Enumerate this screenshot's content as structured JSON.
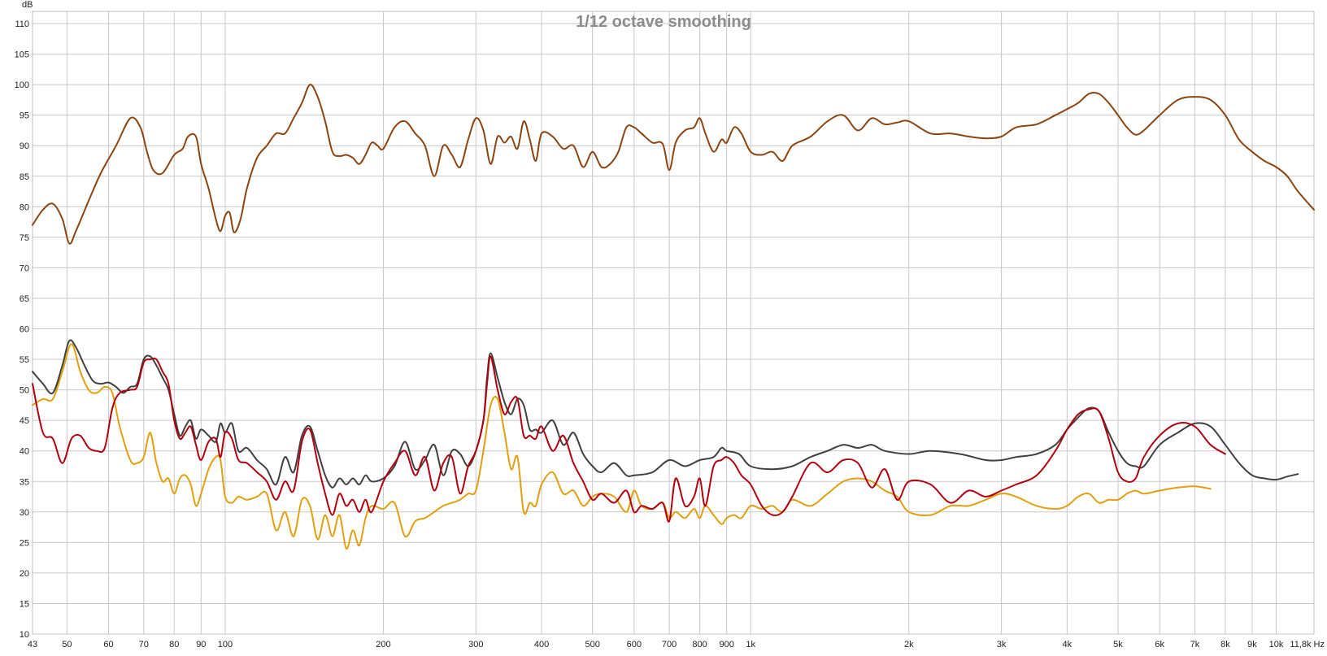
{
  "chart_data": {
    "type": "line",
    "title": "1/12 octave smoothing",
    "ylabel": "dB",
    "xlabel": "Hz",
    "xscale": "log",
    "xlim": [
      43,
      11800
    ],
    "ylim": [
      10,
      112
    ],
    "grid": true,
    "colors": {
      "top": "#8b4513",
      "gray": "#404040",
      "red": "#b00010",
      "orange": "#e0a010",
      "grid": "#c8c8c8",
      "title": "#8c8c8c"
    },
    "y_ticks": [
      10,
      15,
      20,
      25,
      30,
      35,
      40,
      45,
      50,
      55,
      60,
      65,
      70,
      75,
      80,
      85,
      90,
      95,
      100,
      105,
      110
    ],
    "x_ticks": [
      {
        "v": 43,
        "label": "43"
      },
      {
        "v": 50,
        "label": "50"
      },
      {
        "v": 60,
        "label": "60"
      },
      {
        "v": 70,
        "label": "70"
      },
      {
        "v": 80,
        "label": "80"
      },
      {
        "v": 90,
        "label": "90"
      },
      {
        "v": 100,
        "label": "100"
      },
      {
        "v": 200,
        "label": "200"
      },
      {
        "v": 300,
        "label": "300"
      },
      {
        "v": 400,
        "label": "400"
      },
      {
        "v": 500,
        "label": "500"
      },
      {
        "v": 600,
        "label": "600"
      },
      {
        "v": 700,
        "label": "700"
      },
      {
        "v": 800,
        "label": "800"
      },
      {
        "v": 900,
        "label": "900"
      },
      {
        "v": 1000,
        "label": "1k"
      },
      {
        "v": 2000,
        "label": "2k"
      },
      {
        "v": 3000,
        "label": "3k"
      },
      {
        "v": 4000,
        "label": "4k"
      },
      {
        "v": 5000,
        "label": "5k"
      },
      {
        "v": 6000,
        "label": "6k"
      },
      {
        "v": 7000,
        "label": "7k"
      },
      {
        "v": 8000,
        "label": "8k"
      },
      {
        "v": 9000,
        "label": "9k"
      },
      {
        "v": 10000,
        "label": "10k"
      },
      {
        "v": 11800,
        "label": "11,8k Hz"
      }
    ],
    "series": [
      {
        "color_key": "top",
        "x": [
          43,
          45,
          47,
          49,
          50.5,
          52,
          55,
          58,
          62,
          66,
          69,
          71,
          73,
          76,
          80,
          83,
          85,
          88,
          90,
          93,
          96,
          98,
          100,
          102,
          104,
          107,
          110,
          115,
          120,
          125,
          130,
          135,
          140,
          145,
          150,
          155,
          160,
          165,
          170,
          175,
          180,
          185,
          190,
          195,
          200,
          210,
          220,
          230,
          240,
          250,
          260,
          270,
          280,
          290,
          300,
          310,
          320,
          330,
          340,
          350,
          360,
          370,
          380,
          390,
          400,
          420,
          440,
          460,
          480,
          500,
          520,
          540,
          560,
          580,
          600,
          620,
          650,
          680,
          700,
          720,
          750,
          780,
          800,
          820,
          850,
          880,
          900,
          930,
          960,
          1000,
          1050,
          1100,
          1150,
          1200,
          1300,
          1400,
          1500,
          1600,
          1700,
          1800,
          1900,
          2000,
          2200,
          2400,
          2600,
          2800,
          3000,
          3200,
          3500,
          3800,
          4000,
          4200,
          4400,
          4600,
          4800,
          5000,
          5200,
          5400,
          5600,
          6000,
          6500,
          7000,
          7500,
          8000,
          8500,
          9000,
          9500,
          10000,
          10500,
          11000,
          11800
        ],
        "y": [
          77,
          79.5,
          80.5,
          78,
          74,
          76,
          81,
          85.5,
          90,
          94.5,
          93,
          89,
          86,
          85.5,
          88.5,
          89.5,
          91.5,
          91.5,
          87,
          83,
          78,
          76,
          78.5,
          79,
          75.8,
          78,
          83,
          88,
          90,
          92,
          92,
          94.5,
          97,
          100,
          98,
          94,
          89,
          88.3,
          88.5,
          88,
          87,
          88.5,
          90.5,
          90,
          89.5,
          93,
          94,
          92,
          90,
          85,
          90,
          88.5,
          86.5,
          91,
          94.5,
          92.5,
          87,
          91.5,
          90.5,
          91.5,
          89.5,
          94,
          91,
          87.5,
          92,
          91.5,
          89.5,
          90,
          86.5,
          89,
          86.5,
          87,
          89,
          93,
          93,
          92,
          90.5,
          90.3,
          86,
          90.5,
          92.5,
          93,
          94.5,
          92,
          89,
          91,
          90.5,
          93,
          92,
          89,
          88.5,
          89,
          87.5,
          90,
          91.5,
          94,
          95,
          92.5,
          94.5,
          93.5,
          93.8,
          94,
          92,
          92,
          91.5,
          91.2,
          91.5,
          93,
          93.5,
          95,
          96,
          97,
          98.5,
          98.5,
          97,
          95,
          93,
          91.8,
          92.5,
          95,
          97.5,
          98,
          97.5,
          95,
          91,
          89,
          87.5,
          86.5,
          85,
          82.5,
          79.5
        ]
      },
      {
        "color_key": "gray",
        "x": [
          43,
          45,
          47,
          49,
          50.5,
          52,
          54,
          56,
          58,
          60,
          62,
          64,
          66,
          68,
          70,
          72,
          74,
          76,
          78,
          80,
          82,
          84,
          86,
          88,
          90,
          93,
          96,
          98,
          100,
          103,
          106,
          110,
          115,
          120,
          125,
          130,
          135,
          140,
          145,
          150,
          155,
          160,
          165,
          170,
          175,
          180,
          185,
          190,
          200,
          210,
          220,
          230,
          240,
          250,
          260,
          270,
          280,
          290,
          300,
          310,
          315,
          320,
          330,
          340,
          350,
          360,
          370,
          380,
          390,
          400,
          420,
          440,
          460,
          480,
          500,
          520,
          550,
          580,
          600,
          650,
          700,
          750,
          800,
          850,
          880,
          900,
          950,
          1000,
          1100,
          1200,
          1300,
          1400,
          1500,
          1600,
          1700,
          1800,
          2000,
          2200,
          2500,
          2800,
          3000,
          3200,
          3500,
          3800,
          4000,
          4200,
          4400,
          4600,
          4800,
          5000,
          5200,
          5400,
          5600,
          6000,
          6500,
          7000,
          7500,
          8000,
          8500,
          9000,
          9500,
          10000,
          10500,
          11000
        ],
        "y": [
          53,
          51,
          49.5,
          54,
          58,
          57,
          54,
          51.5,
          51,
          51.2,
          50.5,
          49.5,
          50.5,
          51,
          55,
          55.5,
          54,
          52,
          50,
          46,
          42.5,
          44,
          45,
          42,
          43.5,
          42.5,
          41.5,
          44.5,
          43,
          44.5,
          40,
          40.5,
          38.5,
          37,
          34.5,
          39,
          36.5,
          42.5,
          44,
          40,
          36,
          34,
          35.5,
          34.5,
          35.5,
          34.5,
          36,
          35,
          35.5,
          37.5,
          41.5,
          37,
          38.5,
          41,
          36,
          40,
          39.5,
          37.5,
          40,
          45,
          52,
          56,
          52,
          48,
          46,
          48.5,
          47.5,
          43.5,
          43.5,
          43,
          45,
          41,
          43,
          39.5,
          37.5,
          36.5,
          38,
          36,
          36,
          36.5,
          38.5,
          37.5,
          38.5,
          39,
          40.5,
          40,
          39.5,
          37.5,
          37,
          37.5,
          39,
          40,
          41,
          40.5,
          41,
          40,
          39.5,
          40,
          39.5,
          38.5,
          38.5,
          39,
          39.5,
          41,
          43.5,
          45.5,
          47,
          46.5,
          43,
          40,
          38,
          37.5,
          37.5,
          41,
          43,
          44.5,
          44,
          41,
          38,
          36,
          35.5,
          35.3,
          35.8,
          36.2
        ]
      },
      {
        "color_key": "red",
        "x": [
          43,
          45,
          47,
          49,
          51,
          53,
          55,
          57,
          59,
          61,
          63,
          66,
          68,
          70,
          72,
          74,
          76,
          78,
          80,
          82,
          84,
          86,
          88,
          90,
          93,
          96,
          98,
          100,
          103,
          106,
          110,
          115,
          120,
          125,
          130,
          135,
          140,
          145,
          150,
          155,
          160,
          165,
          170,
          175,
          180,
          185,
          190,
          200,
          210,
          220,
          230,
          240,
          250,
          260,
          270,
          280,
          290,
          300,
          310,
          315,
          320,
          330,
          340,
          350,
          360,
          370,
          380,
          390,
          400,
          420,
          440,
          460,
          480,
          500,
          520,
          550,
          580,
          600,
          620,
          650,
          680,
          700,
          720,
          750,
          780,
          800,
          820,
          850,
          880,
          900,
          930,
          960,
          1000,
          1050,
          1100,
          1150,
          1200,
          1300,
          1400,
          1500,
          1600,
          1700,
          1800,
          1900,
          2000,
          2200,
          2400,
          2600,
          2800,
          3000,
          3200,
          3500,
          3800,
          4000,
          4200,
          4400,
          4600,
          4800,
          5000,
          5200,
          5400,
          5600,
          6000,
          6500,
          7000,
          7500,
          8000
        ],
        "y": [
          51,
          43,
          42,
          38,
          42,
          42.5,
          40.5,
          40,
          40.5,
          47,
          49.5,
          50,
          50.5,
          54.5,
          55,
          55,
          53,
          51,
          45,
          42,
          43,
          44,
          41,
          38.5,
          41.5,
          42,
          39,
          43,
          42,
          38.5,
          38,
          36.5,
          35,
          32,
          35,
          33.5,
          41.5,
          43.5,
          38,
          33,
          29.5,
          33,
          31,
          32,
          30,
          32,
          30,
          35,
          38,
          40,
          36,
          39,
          33.5,
          38,
          39,
          33,
          37.5,
          40,
          45,
          51,
          55.5,
          50,
          46,
          48,
          48.5,
          42.5,
          42.5,
          42,
          44,
          40,
          42.5,
          38,
          35,
          32,
          33,
          31.5,
          33.5,
          30,
          31,
          30.5,
          31.5,
          28.5,
          35.5,
          31,
          32.5,
          35.5,
          31,
          37.5,
          38.5,
          39,
          38,
          36,
          34.5,
          31,
          29.5,
          30,
          32.5,
          38,
          36.5,
          38.5,
          38,
          34,
          37,
          32,
          35,
          34.5,
          31.5,
          33.5,
          32.5,
          33.5,
          34.5,
          36,
          40,
          43.5,
          46,
          46.8,
          46.5,
          42,
          36.5,
          35,
          35.5,
          39,
          42.5,
          44.5,
          44,
          41,
          39.5
        ]
      },
      {
        "color_key": "orange",
        "x": [
          43,
          45,
          47,
          49,
          51,
          53,
          55,
          57,
          59,
          61,
          63,
          66,
          68,
          70,
          72,
          74,
          76,
          78,
          80,
          82,
          84,
          86,
          88,
          90,
          93,
          96,
          98,
          100,
          103,
          106,
          110,
          115,
          120,
          125,
          130,
          135,
          140,
          145,
          150,
          155,
          160,
          165,
          170,
          175,
          180,
          185,
          190,
          200,
          210,
          220,
          230,
          240,
          250,
          260,
          270,
          280,
          290,
          300,
          310,
          320,
          330,
          340,
          350,
          360,
          370,
          380,
          390,
          400,
          420,
          440,
          460,
          480,
          500,
          520,
          550,
          580,
          600,
          620,
          650,
          680,
          700,
          720,
          750,
          780,
          800,
          820,
          850,
          880,
          900,
          930,
          960,
          1000,
          1050,
          1100,
          1150,
          1200,
          1300,
          1400,
          1500,
          1600,
          1700,
          1800,
          1900,
          2000,
          2200,
          2400,
          2600,
          2800,
          3000,
          3200,
          3500,
          3800,
          4000,
          4200,
          4400,
          4600,
          4800,
          5000,
          5200,
          5400,
          5600,
          6000,
          6500,
          7000,
          7500
        ],
        "y": [
          47.5,
          48.5,
          48.5,
          53,
          57.5,
          53,
          50,
          49.5,
          50.5,
          49.5,
          44,
          38.5,
          38,
          39,
          43,
          38,
          35,
          35.5,
          33,
          35.5,
          36,
          34.5,
          31,
          33,
          37,
          39,
          38.5,
          32.5,
          31.5,
          32.5,
          32,
          32.5,
          33,
          27,
          30,
          26,
          32,
          31,
          25.5,
          29.5,
          26,
          29.5,
          24,
          27,
          24.5,
          29,
          31,
          30.5,
          31.5,
          26,
          28.5,
          29,
          30,
          31,
          31.5,
          32,
          33,
          33.5,
          40,
          47.5,
          48.5,
          43,
          37,
          39,
          30,
          31.5,
          31,
          34.5,
          36.5,
          33,
          33.5,
          31,
          32.5,
          33,
          32.5,
          30,
          33.5,
          31,
          30.5,
          31.5,
          29,
          30,
          29,
          30.5,
          29,
          31,
          29.5,
          28,
          29,
          29.5,
          29,
          31,
          30.5,
          31,
          30,
          32,
          31,
          33,
          35,
          35.5,
          35,
          33.5,
          32.5,
          30,
          29.5,
          31,
          31,
          32,
          33,
          32.5,
          31,
          30.5,
          31,
          32.5,
          33,
          31.5,
          32,
          32,
          33,
          33.5,
          33,
          33.5,
          34,
          34.2,
          33.8
        ]
      }
    ]
  }
}
